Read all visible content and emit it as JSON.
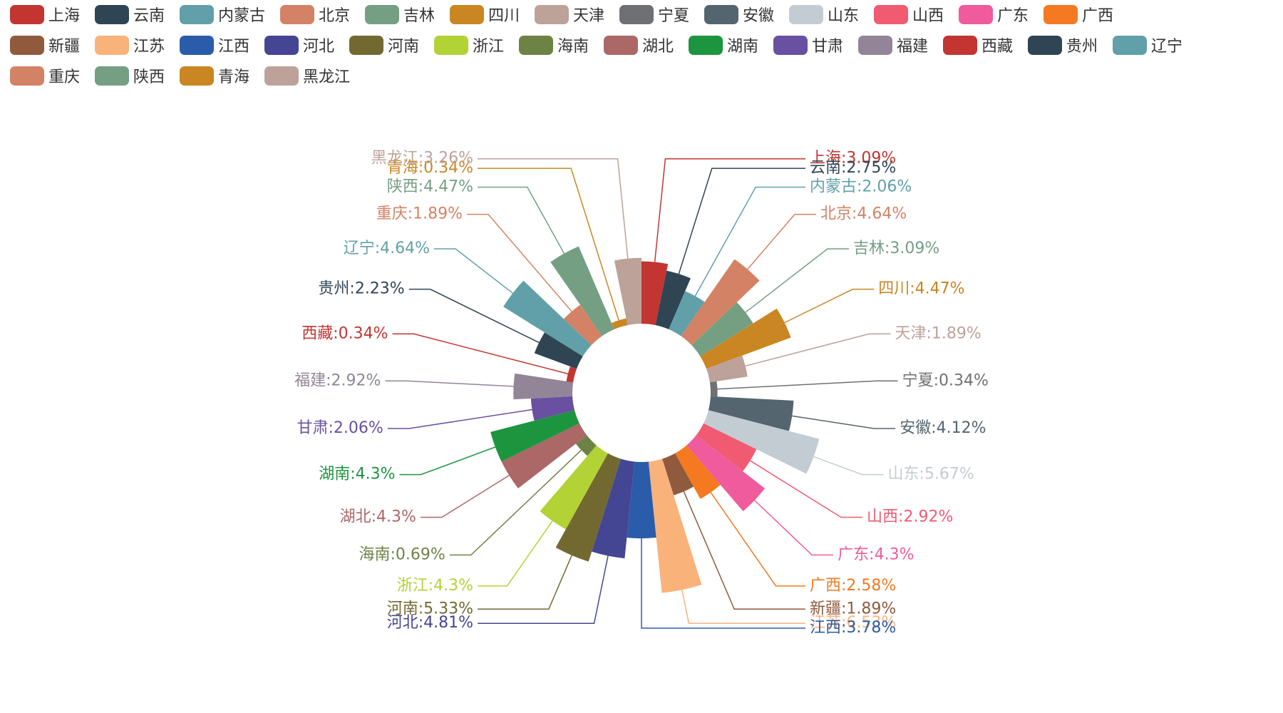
{
  "chart_data": {
    "type": "pie",
    "variant": "rose-radius",
    "legend_position": "top",
    "label_format": "{name}:{value}%",
    "categories": [
      "上海",
      "云南",
      "内蒙古",
      "北京",
      "吉林",
      "四川",
      "天津",
      "宁夏",
      "安徽",
      "山东",
      "山西",
      "广东",
      "广西",
      "新疆",
      "江苏",
      "江西",
      "河北",
      "河南",
      "浙江",
      "海南",
      "湖北",
      "湖南",
      "甘肃",
      "福建",
      "西藏",
      "贵州",
      "辽宁",
      "重庆",
      "陕西",
      "青海",
      "黑龙江"
    ],
    "values": [
      3.09,
      2.75,
      2.06,
      4.64,
      3.09,
      4.47,
      1.89,
      0.34,
      4.12,
      5.67,
      2.92,
      4.3,
      2.58,
      1.89,
      6.53,
      3.78,
      4.81,
      5.33,
      4.3,
      0.69,
      4.3,
      4.3,
      2.06,
      2.92,
      0.34,
      2.23,
      4.64,
      1.89,
      4.47,
      0.34,
      3.26
    ],
    "colors": [
      "#c23531",
      "#2f4554",
      "#61a0a8",
      "#d48265",
      "#749f83",
      "#ca8622",
      "#bda29a",
      "#6e7074",
      "#546570",
      "#c4ccd3",
      "#f05b72",
      "#ef5b9c",
      "#f47920",
      "#905a3d",
      "#fab27b",
      "#2a5caa",
      "#444693",
      "#726930",
      "#b2d235",
      "#6d8346",
      "#ac6767",
      "#1d953f",
      "#6950a1",
      "#918597",
      "#c23531",
      "#2f4554",
      "#61a0a8",
      "#d48265",
      "#749f83",
      "#ca8622",
      "#bda29a"
    ]
  }
}
